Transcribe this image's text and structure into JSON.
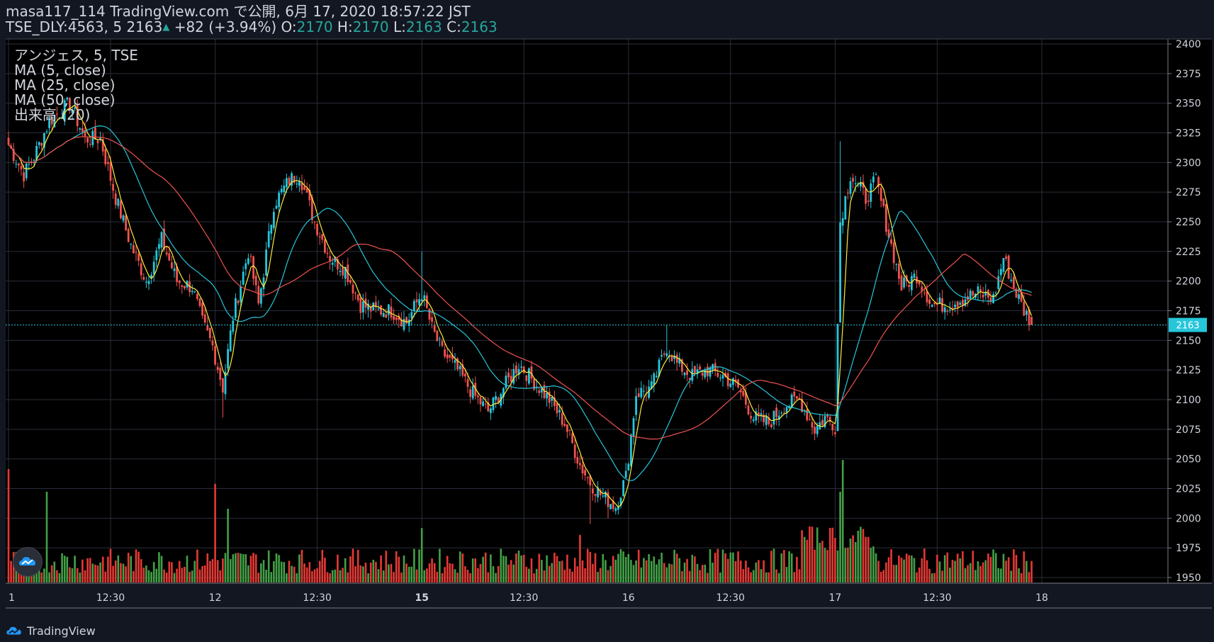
{
  "header": {
    "line1": "masa117_114 TradingView.com で公開, 6月 17, 2020 18:57:22 JST",
    "symbol_prefix": "TSE_DLY:4563, 5 2163",
    "change": "+82 (+3.94%)",
    "o_label": "O:",
    "o_value": "2170",
    "h_label": "H:",
    "h_value": "2170",
    "l_label": "L:",
    "l_value": "2163",
    "c_label": "C:",
    "c_value": "2163"
  },
  "legend": {
    "title": "アンジェス, 5, TSE",
    "ma5": "MA (5, close)",
    "ma25": "MA (25, close)",
    "ma50": "MA (50, close)",
    "volume": "出来高 (20)"
  },
  "footer": {
    "brand": "TradingView"
  },
  "colors": {
    "background": "#000000",
    "grid": "#2a2e39",
    "up": "#26c6da",
    "down": "#ef5350",
    "vol_up": "#43a047",
    "vol_down": "#e53935",
    "ma5": "#ffeb3b",
    "ma25": "#26c6da",
    "ma50": "#ef5350",
    "last_price": "#26c6da"
  },
  "chart_data": {
    "type": "candlestick",
    "symbol": "TSE_DLY:4563",
    "interval": "5",
    "last_price": 2163,
    "last_price_label": "2163",
    "y_ticks": [
      1950,
      1975,
      2000,
      2025,
      2050,
      2075,
      2100,
      2125,
      2150,
      2175,
      2200,
      2225,
      2250,
      2275,
      2300,
      2325,
      2350,
      2375,
      2400
    ],
    "ylim": [
      1950,
      2405
    ],
    "x_tick_labels": [
      {
        "label": "1",
        "bar": 0
      },
      {
        "label": "12:30",
        "bar": 40
      },
      {
        "label": "12",
        "bar": 81
      },
      {
        "label": "12:30",
        "bar": 121
      },
      {
        "label": "15",
        "bar": 162
      },
      {
        "label": "12:30",
        "bar": 202
      },
      {
        "label": "16",
        "bar": 243
      },
      {
        "label": "12:30",
        "bar": 283
      },
      {
        "label": "17",
        "bar": 324
      },
      {
        "label": "12:30",
        "bar": 364
      },
      {
        "label": "18",
        "bar": 405
      }
    ],
    "bold_x_labels": [
      "15"
    ],
    "anchors": [
      [
        0,
        2315
      ],
      [
        6,
        2290
      ],
      [
        10,
        2305
      ],
      [
        16,
        2335
      ],
      [
        24,
        2350
      ],
      [
        30,
        2320
      ],
      [
        36,
        2320
      ],
      [
        42,
        2270
      ],
      [
        48,
        2230
      ],
      [
        54,
        2200
      ],
      [
        60,
        2235
      ],
      [
        66,
        2200
      ],
      [
        72,
        2195
      ],
      [
        76,
        2165
      ],
      [
        80,
        2145
      ],
      [
        84,
        2110
      ],
      [
        88,
        2170
      ],
      [
        94,
        2225
      ],
      [
        98,
        2180
      ],
      [
        104,
        2265
      ],
      [
        110,
        2285
      ],
      [
        114,
        2290
      ],
      [
        120,
        2250
      ],
      [
        126,
        2220
      ],
      [
        132,
        2210
      ],
      [
        138,
        2180
      ],
      [
        144,
        2175
      ],
      [
        150,
        2175
      ],
      [
        156,
        2165
      ],
      [
        162,
        2190
      ],
      [
        166,
        2160
      ],
      [
        170,
        2140
      ],
      [
        176,
        2125
      ],
      [
        182,
        2105
      ],
      [
        188,
        2090
      ],
      [
        194,
        2110
      ],
      [
        200,
        2130
      ],
      [
        206,
        2115
      ],
      [
        212,
        2100
      ],
      [
        218,
        2080
      ],
      [
        224,
        2045
      ],
      [
        228,
        2030
      ],
      [
        232,
        2020
      ],
      [
        238,
        2010
      ],
      [
        242,
        2035
      ],
      [
        246,
        2105
      ],
      [
        252,
        2110
      ],
      [
        258,
        2145
      ],
      [
        262,
        2130
      ],
      [
        268,
        2120
      ],
      [
        274,
        2125
      ],
      [
        280,
        2120
      ],
      [
        286,
        2110
      ],
      [
        292,
        2085
      ],
      [
        298,
        2080
      ],
      [
        304,
        2095
      ],
      [
        310,
        2100
      ],
      [
        316,
        2075
      ],
      [
        320,
        2085
      ],
      [
        324,
        2078
      ],
      [
        326,
        2250
      ],
      [
        330,
        2290
      ],
      [
        336,
        2270
      ],
      [
        340,
        2285
      ],
      [
        346,
        2230
      ],
      [
        350,
        2195
      ],
      [
        356,
        2205
      ],
      [
        362,
        2180
      ],
      [
        368,
        2180
      ],
      [
        374,
        2185
      ],
      [
        380,
        2190
      ],
      [
        386,
        2185
      ],
      [
        390,
        2220
      ],
      [
        394,
        2195
      ],
      [
        398,
        2175
      ],
      [
        401,
        2165
      ]
    ],
    "spikes": [
      [
        84,
        2085
      ],
      [
        162,
        2225
      ],
      [
        244,
        2068
      ],
      [
        258,
        2163
      ],
      [
        326,
        2318
      ],
      [
        228,
        1995
      ],
      [
        235,
        2000
      ]
    ],
    "vol_spikes": [
      [
        0,
        100
      ],
      [
        15,
        80
      ],
      [
        81,
        87
      ],
      [
        86,
        65
      ],
      [
        162,
        48
      ],
      [
        224,
        42
      ],
      [
        326,
        80
      ],
      [
        327,
        108
      ]
    ],
    "ma_periods": [
      5,
      25,
      50
    ],
    "series": [
      {
        "name": "MA (5, close)"
      },
      {
        "name": "MA (25, close)"
      },
      {
        "name": "MA (50, close)"
      },
      {
        "name": "出来高 (20)"
      }
    ]
  }
}
